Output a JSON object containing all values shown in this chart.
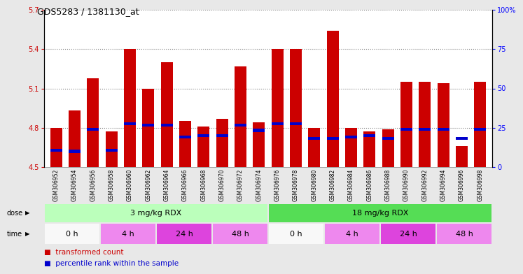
{
  "title": "GDS5283 / 1381130_at",
  "samples": [
    "GSM306952",
    "GSM306954",
    "GSM306956",
    "GSM306958",
    "GSM306960",
    "GSM306962",
    "GSM306964",
    "GSM306966",
    "GSM306968",
    "GSM306970",
    "GSM306972",
    "GSM306974",
    "GSM306976",
    "GSM306978",
    "GSM306980",
    "GSM306982",
    "GSM306984",
    "GSM306986",
    "GSM306988",
    "GSM306990",
    "GSM306992",
    "GSM306994",
    "GSM306996",
    "GSM306998"
  ],
  "bar_values": [
    4.8,
    4.93,
    5.18,
    4.77,
    5.4,
    5.1,
    5.3,
    4.85,
    4.81,
    4.87,
    5.27,
    4.84,
    5.4,
    5.4,
    4.8,
    5.54,
    4.8,
    4.77,
    4.79,
    5.15,
    5.15,
    5.14,
    4.66,
    5.15
  ],
  "percentile_values": [
    4.63,
    4.62,
    4.79,
    4.63,
    4.83,
    4.82,
    4.82,
    4.73,
    4.74,
    4.74,
    4.82,
    4.78,
    4.83,
    4.83,
    4.72,
    4.72,
    4.73,
    4.74,
    4.72,
    4.79,
    4.79,
    4.79,
    4.72,
    4.79
  ],
  "ymin": 4.5,
  "ymax": 5.7,
  "yticks_left": [
    4.5,
    4.8,
    5.1,
    5.4,
    5.7
  ],
  "yticks_right": [
    0,
    25,
    50,
    75,
    100
  ],
  "bar_color": "#cc0000",
  "percentile_color": "#0000cc",
  "fig_bg": "#e8e8e8",
  "plot_bg": "#ffffff",
  "xtick_area_bg": "#d0d0d0",
  "dose_items": [
    {
      "text": "3 mg/kg RDX",
      "start": 0,
      "end": 12,
      "color": "#bbffbb"
    },
    {
      "text": "18 mg/kg RDX",
      "start": 12,
      "end": 24,
      "color": "#55dd55"
    }
  ],
  "time_items": [
    {
      "text": "0 h",
      "start": 0,
      "end": 3,
      "color": "#f8f8f8"
    },
    {
      "text": "4 h",
      "start": 3,
      "end": 6,
      "color": "#ee88ee"
    },
    {
      "text": "24 h",
      "start": 6,
      "end": 9,
      "color": "#dd44dd"
    },
    {
      "text": "48 h",
      "start": 9,
      "end": 12,
      "color": "#ee88ee"
    },
    {
      "text": "0 h",
      "start": 12,
      "end": 15,
      "color": "#f8f8f8"
    },
    {
      "text": "4 h",
      "start": 15,
      "end": 18,
      "color": "#ee88ee"
    },
    {
      "text": "24 h",
      "start": 18,
      "end": 21,
      "color": "#dd44dd"
    },
    {
      "text": "48 h",
      "start": 21,
      "end": 24,
      "color": "#ee88ee"
    }
  ],
  "legend_items": [
    {
      "label": "transformed count",
      "color": "#cc0000"
    },
    {
      "label": "percentile rank within the sample",
      "color": "#0000cc"
    }
  ],
  "label_left_color": "#cc0000",
  "label_right_color": "#0000ff",
  "grid_color": "#000000",
  "grid_alpha": 0.5,
  "title_fontsize": 9,
  "axis_fontsize": 7,
  "bar_label_fontsize": 5.5,
  "row_label_fontsize": 7,
  "time_dose_fontsize": 8,
  "legend_fontsize": 7.5
}
